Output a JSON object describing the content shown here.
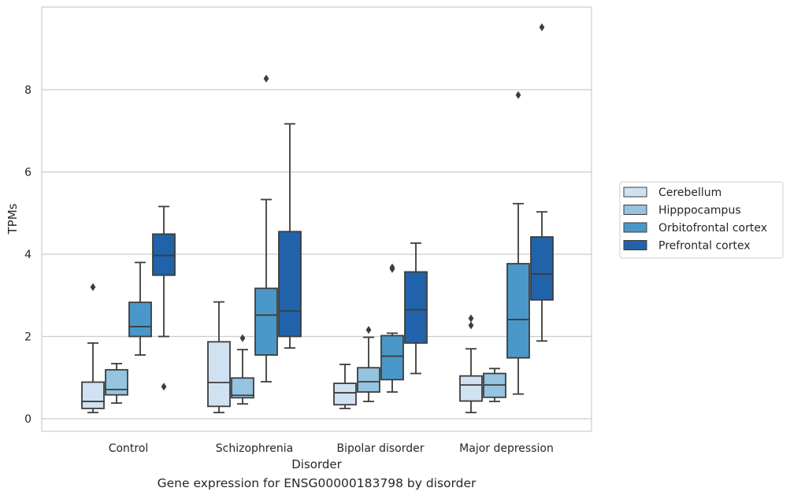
{
  "caption": "Gene expression for ENSG00000183798 by disorder",
  "chart_data": {
    "type": "box",
    "xlabel": "Disorder",
    "ylabel": "TPMs",
    "categories": [
      "Control",
      "Schizophrenia",
      "Bipolar disorder",
      "Major depression"
    ],
    "ylim": [
      -0.3,
      9.9
    ],
    "yticks": [
      0,
      2,
      4,
      6,
      8
    ],
    "grid": true,
    "legend_position": "right",
    "series": [
      {
        "name": "Cerebellum",
        "color": "#d0e1f2",
        "boxes": [
          {
            "whisker_low": 0.15,
            "q1": 0.25,
            "median": 0.42,
            "q3": 0.89,
            "whisker_high": 1.84,
            "outliers": [
              3.2
            ]
          },
          {
            "whisker_low": 0.15,
            "q1": 0.3,
            "median": 0.88,
            "q3": 1.87,
            "whisker_high": 2.84,
            "outliers": []
          },
          {
            "whisker_low": 0.25,
            "q1": 0.34,
            "median": 0.63,
            "q3": 0.86,
            "whisker_high": 1.32,
            "outliers": []
          },
          {
            "whisker_low": 0.15,
            "q1": 0.43,
            "median": 0.82,
            "q3": 1.04,
            "whisker_high": 1.7,
            "outliers": [
              2.27,
              2.44
            ]
          }
        ]
      },
      {
        "name": "Hipppocampus",
        "color": "#94c4df",
        "boxes": [
          {
            "whisker_low": 0.38,
            "q1": 0.58,
            "median": 0.71,
            "q3": 1.19,
            "whisker_high": 1.34,
            "outliers": []
          },
          {
            "whisker_low": 0.36,
            "q1": 0.51,
            "median": 0.57,
            "q3": 0.99,
            "whisker_high": 1.68,
            "outliers": [
              1.96
            ]
          },
          {
            "whisker_low": 0.42,
            "q1": 0.65,
            "median": 0.9,
            "q3": 1.24,
            "whisker_high": 1.98,
            "outliers": [
              2.16
            ]
          },
          {
            "whisker_low": 0.42,
            "q1": 0.52,
            "median": 0.82,
            "q3": 1.1,
            "whisker_high": 1.22,
            "outliers": []
          }
        ]
      },
      {
        "name": "Orbitofrontal cortex",
        "color": "#4a98c9",
        "boxes": [
          {
            "whisker_low": 1.55,
            "q1": 2.0,
            "median": 2.24,
            "q3": 2.83,
            "whisker_high": 3.8,
            "outliers": []
          },
          {
            "whisker_low": 0.9,
            "q1": 1.55,
            "median": 2.52,
            "q3": 3.17,
            "whisker_high": 5.33,
            "outliers": [
              8.27
            ]
          },
          {
            "whisker_low": 0.65,
            "q1": 0.95,
            "median": 1.52,
            "q3": 2.02,
            "whisker_high": 2.08,
            "outliers": [
              3.64,
              3.68
            ]
          },
          {
            "whisker_low": 0.6,
            "q1": 1.48,
            "median": 2.41,
            "q3": 3.77,
            "whisker_high": 5.23,
            "outliers": [
              7.87
            ]
          }
        ]
      },
      {
        "name": "Prefrontal cortex",
        "color": "#2163aa",
        "boxes": [
          {
            "whisker_low": 2.0,
            "q1": 3.49,
            "median": 3.97,
            "q3": 4.49,
            "whisker_high": 5.16,
            "outliers": [
              0.78
            ]
          },
          {
            "whisker_low": 1.72,
            "q1": 2.0,
            "median": 2.62,
            "q3": 4.55,
            "whisker_high": 7.17,
            "outliers": []
          },
          {
            "whisker_low": 1.1,
            "q1": 1.84,
            "median": 2.65,
            "q3": 3.57,
            "whisker_high": 4.27,
            "outliers": []
          },
          {
            "whisker_low": 1.89,
            "q1": 2.89,
            "median": 3.52,
            "q3": 4.42,
            "whisker_high": 5.03,
            "outliers": [
              9.52
            ]
          }
        ]
      }
    ]
  }
}
